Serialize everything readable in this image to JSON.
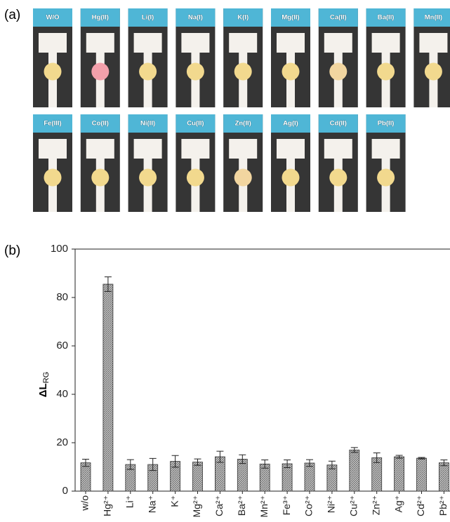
{
  "panel_a": {
    "label": "(a)",
    "strip_color": "#4fb6d6",
    "rows": [
      [
        {
          "label": "W/O",
          "color": "#f2d98e"
        },
        {
          "label": "Hg(II)",
          "color": "#f3a0ab"
        },
        {
          "label": "Li(I)",
          "color": "#f2d98e"
        },
        {
          "label": "Na(I)",
          "color": "#f2d98e"
        },
        {
          "label": "K(I)",
          "color": "#f2d98e"
        },
        {
          "label": "Mg(II)",
          "color": "#f2d98e"
        },
        {
          "label": "Ca(II)",
          "color": "#f2d6a0"
        },
        {
          "label": "Ba(II)",
          "color": "#f2d98e"
        },
        {
          "label": "Mn(II)",
          "color": "#f2d98e"
        }
      ],
      [
        {
          "label": "Fe(III)",
          "color": "#f2d98e"
        },
        {
          "label": "Co(II)",
          "color": "#f2d98e"
        },
        {
          "label": "Ni(II)",
          "color": "#f2d98e"
        },
        {
          "label": "Cu(II)",
          "color": "#f2d98e"
        },
        {
          "label": "Zn(II)",
          "color": "#f2d6a0"
        },
        {
          "label": "Ag(I)",
          "color": "#f2d98e"
        },
        {
          "label": "Cd(II)",
          "color": "#f2d98e"
        },
        {
          "label": "Pb(II)",
          "color": "#f2d98e"
        }
      ]
    ]
  },
  "chart_data": {
    "type": "bar",
    "panel_label": "(b)",
    "ylabel": "ΔL",
    "ylabel_sub": "RG",
    "categories": [
      "w/o",
      "Hg²⁺",
      "Li⁺",
      "Na⁺",
      "K⁺",
      "Mg²⁺",
      "Ca²⁺",
      "Ba²⁺",
      "Mn²⁺",
      "Fe³⁺",
      "Co²⁺",
      "Ni²⁺",
      "Cu²⁺",
      "Zn²⁺",
      "Ag⁺",
      "Cd²⁺",
      "Pb²⁺"
    ],
    "values": [
      11.7,
      85.5,
      11,
      11,
      12.3,
      12,
      14.2,
      13.2,
      11.2,
      11.3,
      11.6,
      10.8,
      17,
      13.8,
      14.2,
      13.6,
      11.7
    ],
    "errors": [
      1.5,
      3,
      2,
      2.5,
      2.4,
      1.3,
      2.3,
      1.8,
      1.7,
      1.6,
      1.4,
      1.6,
      1,
      2,
      0.6,
      0.3,
      1.2
    ],
    "color": "#a9a9a9",
    "ylim": [
      0,
      100
    ],
    "yticks": [
      0,
      20,
      40,
      60,
      80,
      100
    ]
  }
}
